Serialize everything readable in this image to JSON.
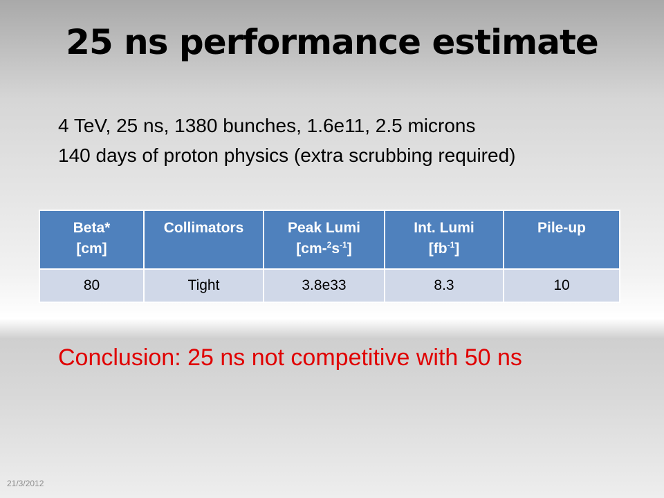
{
  "title": "25 ns performance estimate",
  "lines": [
    "4 TeV, 25 ns, 1380 bunches, 1.6e11, 2.5 microns",
    "140 days of proton physics (extra scrubbing required)"
  ],
  "table": {
    "header": [
      [
        [
          "Beta*"
        ],
        [
          "[cm]"
        ]
      ],
      [
        [
          "Collimators"
        ]
      ],
      [
        [
          "Peak Lumi"
        ],
        [
          "[cm-",
          {
            "sup": "2"
          },
          "s",
          {
            "sup": "-1"
          },
          "]"
        ]
      ],
      [
        [
          "Int. Lumi"
        ],
        [
          "[fb",
          {
            "sup": "-1"
          },
          "]"
        ]
      ],
      [
        [
          "Pile-up"
        ]
      ]
    ],
    "rows": [
      [
        "80",
        "Tight",
        "3.8e33",
        "8.3",
        "10"
      ]
    ]
  },
  "conclusion": "Conclusion: 25 ns not competitive with 50 ns",
  "date": "21/3/2012"
}
